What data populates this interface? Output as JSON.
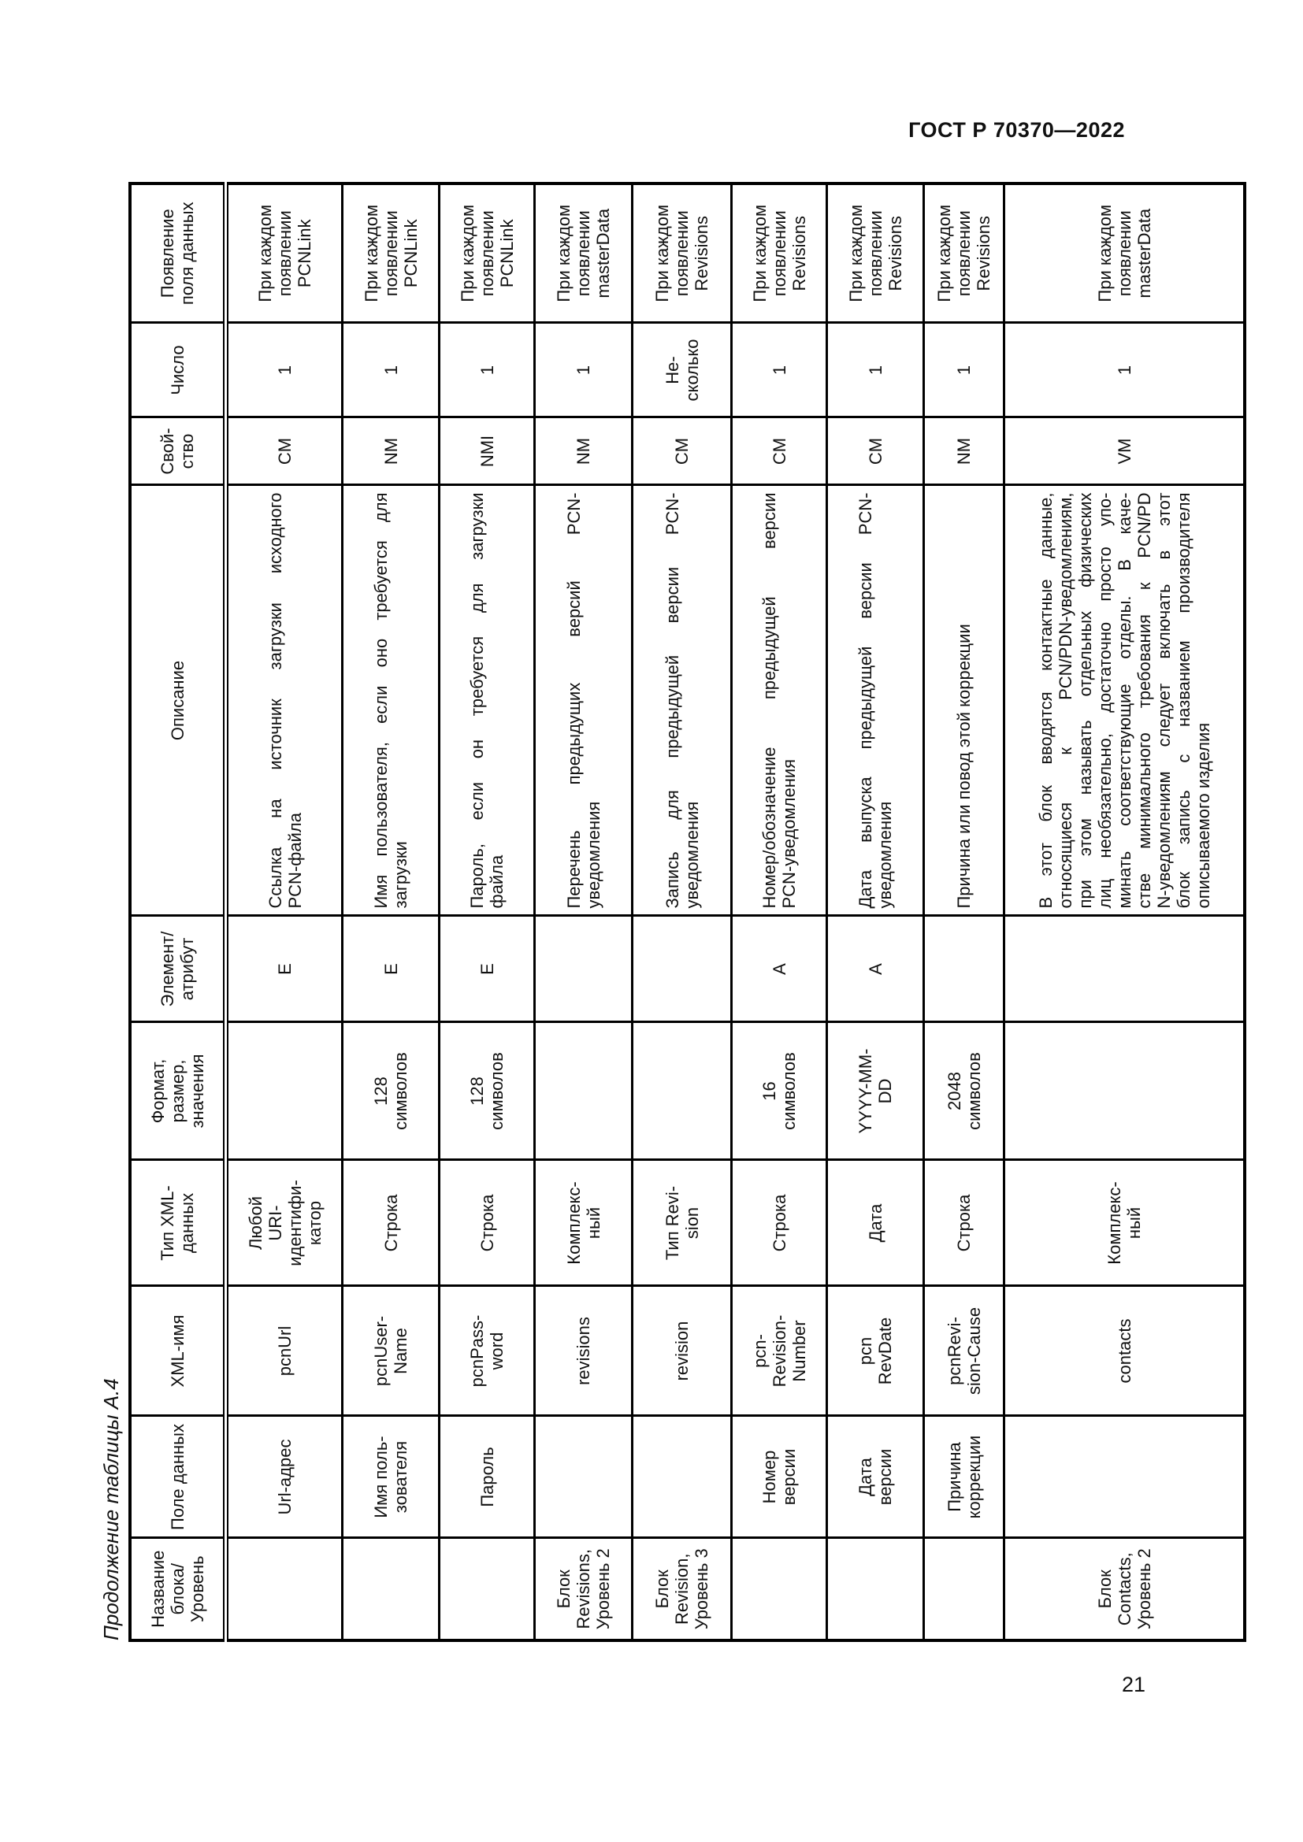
{
  "page": {
    "header": "ГОСТ Р 70370—2022",
    "page_number": "21",
    "table_caption": "Продолжение таблицы А.4"
  },
  "table": {
    "columns": [
      {
        "key": "block",
        "label": "Название\nблока/\nУровень"
      },
      {
        "key": "field",
        "label": "Поле данных"
      },
      {
        "key": "xml_name",
        "label": "XML-имя"
      },
      {
        "key": "xml_type",
        "label": "Тип XML-\nданных"
      },
      {
        "key": "format",
        "label": "Формат,\nразмер,\nзначения"
      },
      {
        "key": "elem",
        "label": "Элемент/\nатрибут"
      },
      {
        "key": "description",
        "label": "Описание"
      },
      {
        "key": "property",
        "label": "Свой-\nство"
      },
      {
        "key": "count",
        "label": "Число"
      },
      {
        "key": "occurrence",
        "label": "Появление\nполя данных"
      }
    ],
    "rows": [
      {
        "block": "",
        "field": "Url-адрес",
        "xml_name": "pcnUrl",
        "xml_type": "Любой\nURI-\nидентифи-\nкатор",
        "format": "",
        "elem": "E",
        "description": "Ссылка на источник загрузки исходного\nPCN-файла",
        "property": "CM",
        "count": "1",
        "occurrence": "При каждом\nпоявлении\nPCNLink"
      },
      {
        "block": "",
        "field": "Имя поль-\nзователя",
        "xml_name": "pcnUser-\nName",
        "xml_type": "Строка",
        "format": "128\nсимволов",
        "elem": "E",
        "description": "Имя пользователя, если оно требуется для\nзагрузки",
        "property": "NM",
        "count": "1",
        "occurrence": "При каждом\nпоявлении\nPCNLink"
      },
      {
        "block": "",
        "field": "Пароль",
        "xml_name": "pcnPass-\nword",
        "xml_type": "Строка",
        "format": "128\nсимволов",
        "elem": "E",
        "description": "Пароль, если он требуется для загрузки\nфайла",
        "property": "NMI",
        "count": "1",
        "occurrence": "При каждом\nпоявлении\nPCNLink"
      },
      {
        "block": "Блок\nRevisions,\nУровень 2",
        "field": "",
        "xml_name": "revisions",
        "xml_type": "Комплекс-\nный",
        "format": "",
        "elem": "",
        "description": "Перечень предыдущих версий PCN-\nуведомления",
        "property": "NM",
        "count": "1",
        "occurrence": "При каждом\nпоявлении\nmasterData"
      },
      {
        "block": "Блок\nRevision,\nУровень 3",
        "field": "",
        "xml_name": "revision",
        "xml_type": "Тип Revi-\nsion",
        "format": "",
        "elem": "",
        "description": "Запись для предыдущей версии PCN-\nуведомления",
        "property": "CM",
        "count": "Не-\nсколько",
        "occurrence": "При каждом\nпоявлении\nRevisions"
      },
      {
        "block": "",
        "field": "Номер\nверсии",
        "xml_name": "pcn-\nRevision-\nNumber",
        "xml_type": "Строка",
        "format": "16\nсимволов",
        "elem": "A",
        "description": "Номер/обозначение предыдущей версии\nPCN-уведомления",
        "property": "CM",
        "count": "1",
        "occurrence": "При каждом\nпоявлении\nRevisions"
      },
      {
        "block": "",
        "field": "Дата\nверсии",
        "xml_name": "pcn\nRevDate",
        "xml_type": "Дата",
        "format": "YYYY-MM-\nDD",
        "elem": "A",
        "description": "Дата выпуска предыдущей версии PCN-\nуведомления",
        "property": "CM",
        "count": "1",
        "occurrence": "При каждом\nпоявлении\nRevisions"
      },
      {
        "block": "",
        "field": "Причина\nкоррекции",
        "xml_name": "pcnRevi-\nsion-Cause",
        "xml_type": "Строка",
        "format": "2048\nсимволов",
        "elem": "",
        "description": "Причина или повод этой коррекции",
        "property": "NM",
        "count": "1",
        "occurrence": "При каждом\nпоявлении\nRevisions"
      },
      {
        "block": "Блок\nContacts,\nУровень 2",
        "field": "",
        "xml_name": "contacts",
        "xml_type": "Комплекс-\nный",
        "format": "",
        "elem": "",
        "description": "В этот блок вводятся контактные данные,\nотносящиеся к PCN/PDN-уведомлениям,\nпри этом называть отдельных физических\nлиц необязательно, достаточно просто упо-\nминать соответствующие отделы. В каче-\nстве минимального требования к PCN/PD\nN-уведомлениям следует включать в этот\nблок запись с названием производителя\nописываемого изделия",
        "property": "VM",
        "count": "1",
        "occurrence": "При каждом\nпоявлении\nmasterData"
      }
    ]
  }
}
